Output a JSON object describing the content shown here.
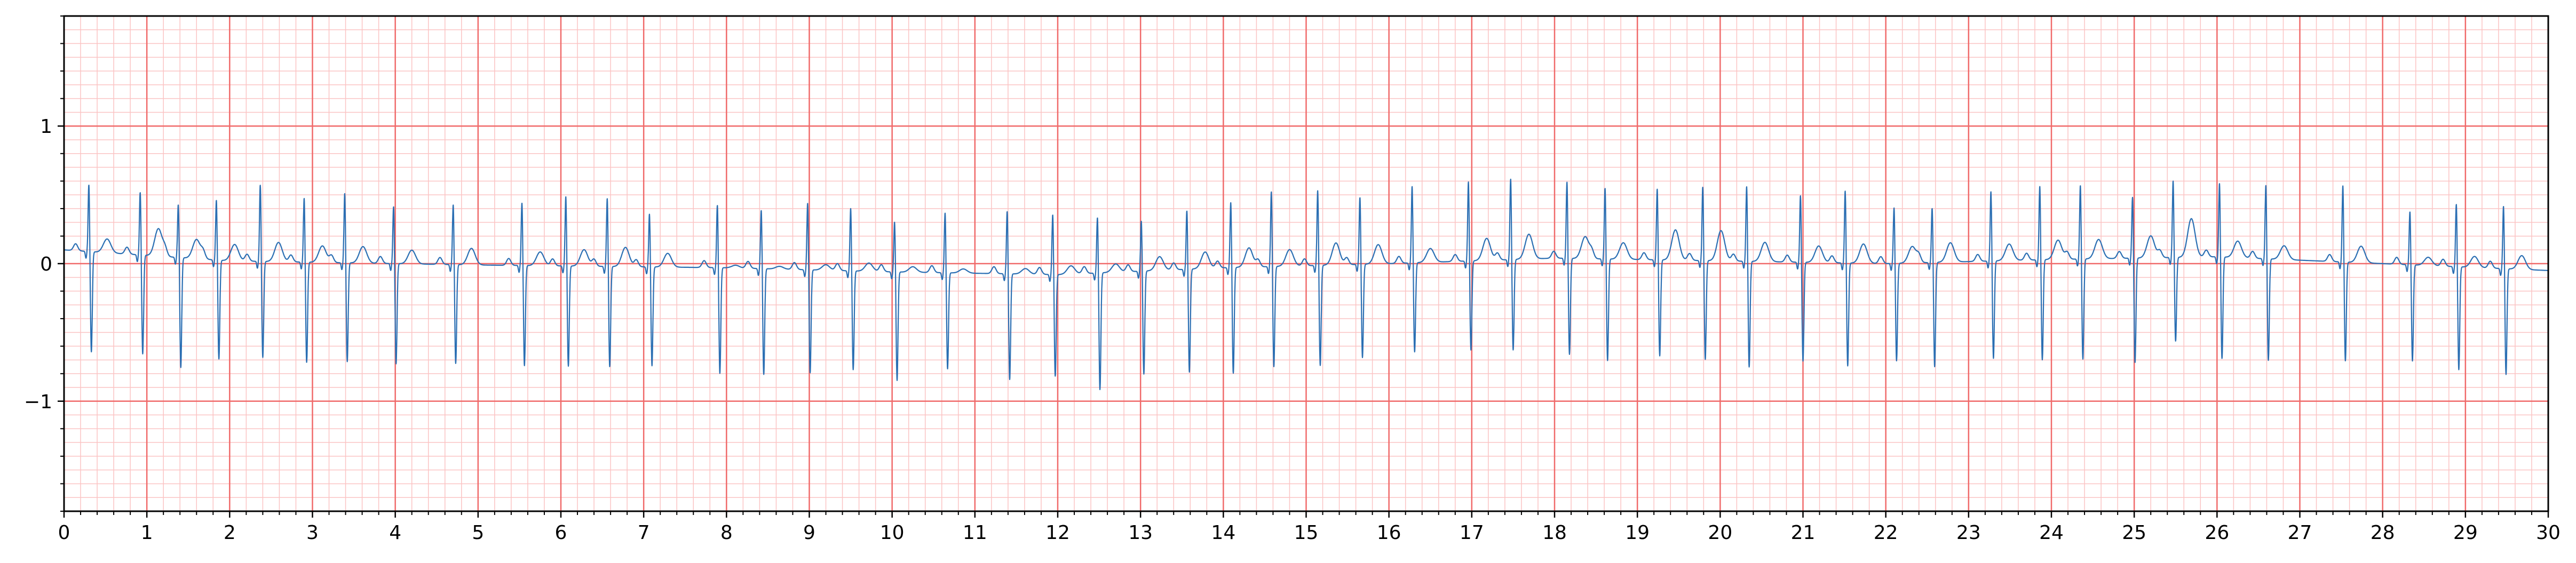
{
  "chart_data": {
    "type": "line",
    "title": "",
    "xlabel": "",
    "ylabel": "",
    "xlim": [
      0,
      30
    ],
    "ylim": [
      -1.8,
      1.8
    ],
    "x_ticks": [
      "0",
      "1",
      "2",
      "3",
      "4",
      "5",
      "6",
      "7",
      "8",
      "9",
      "10",
      "11",
      "12",
      "13",
      "14",
      "15",
      "16",
      "17",
      "18",
      "19",
      "20",
      "21",
      "22",
      "23",
      "24",
      "25",
      "26",
      "27",
      "28",
      "29",
      "30"
    ],
    "y_ticks": [
      "1",
      "0",
      "−1"
    ],
    "y_tick_values": [
      1,
      0,
      -1
    ],
    "grid": true,
    "grid_style": "ECG paper: major lines every 1 s and 1 mV, minor lines every 0.2 s and 0.1 mV",
    "colors": {
      "major_grid": "#f06a6a",
      "minor_grid": "#fbc4c4",
      "trace": "#2b6fb3"
    },
    "series": [
      {
        "name": "",
        "sampling": "one beat per R-peak time; waveform: small P wave, narrow QRS (R peak then deep S), broad T wave, slightly wandering baseline",
        "r_peak_times": [
          0.3,
          0.92,
          1.38,
          1.84,
          2.37,
          2.9,
          3.39,
          3.98,
          4.7,
          5.53,
          6.06,
          6.56,
          7.07,
          7.89,
          8.42,
          8.98,
          9.5,
          10.03,
          10.64,
          11.39,
          11.94,
          12.48,
          13.01,
          13.56,
          14.09,
          14.58,
          15.14,
          15.65,
          16.28,
          16.96,
          17.47,
          18.15,
          18.61,
          19.24,
          19.79,
          20.32,
          20.97,
          21.51,
          22.1,
          22.56,
          23.27,
          23.86,
          24.35,
          24.98,
          25.47,
          26.03,
          26.59,
          27.52,
          28.33,
          28.89,
          29.46
        ],
        "r_peak_amplitudes": [
          0.5,
          0.47,
          0.4,
          0.45,
          0.57,
          0.48,
          0.52,
          0.43,
          0.45,
          0.47,
          0.52,
          0.51,
          0.4,
          0.47,
          0.44,
          0.5,
          0.47,
          0.38,
          0.45,
          0.47,
          0.45,
          0.42,
          0.38,
          0.44,
          0.49,
          0.56,
          0.56,
          0.5,
          0.57,
          0.59,
          0.6,
          0.57,
          0.53,
          0.53,
          0.55,
          0.56,
          0.5,
          0.54,
          0.42,
          0.41,
          0.52,
          0.55,
          0.55,
          0.46,
          0.57,
          0.55,
          0.55,
          0.57,
          0.4,
          0.47,
          0.47
        ],
        "s_trough_amplitudes": [
          -0.73,
          -0.72,
          -0.8,
          -0.72,
          -0.7,
          -0.73,
          -0.72,
          -0.73,
          -0.72,
          -0.73,
          -0.73,
          -0.73,
          -0.72,
          -0.77,
          -0.77,
          -0.75,
          -0.72,
          -0.79,
          -0.7,
          -0.77,
          -0.74,
          -0.85,
          -0.75,
          -0.75,
          -0.77,
          -0.73,
          -0.73,
          -0.68,
          -0.65,
          -0.65,
          -0.66,
          -0.7,
          -0.74,
          -0.7,
          -0.72,
          -0.77,
          -0.72,
          -0.75,
          -0.71,
          -0.76,
          -0.71,
          -0.73,
          -0.73,
          -0.76,
          -0.61,
          -0.74,
          -0.74,
          -0.72,
          -0.7,
          -0.75,
          -0.77
        ],
        "t_wave_amplitudes": [
          0.1,
          0.2,
          0.14,
          0.12,
          0.14,
          0.12,
          0.12,
          0.1,
          0.12,
          0.1,
          0.12,
          0.14,
          0.1,
          0.02,
          0.02,
          0.04,
          0.06,
          0.04,
          0.03,
          0.04,
          0.06,
          0.06,
          0.1,
          0.12,
          0.14,
          0.12,
          0.16,
          0.14,
          0.1,
          0.16,
          0.18,
          0.16,
          0.12,
          0.22,
          0.22,
          0.14,
          0.12,
          0.14,
          0.12,
          0.14,
          0.12,
          0.14,
          0.14,
          0.16,
          0.28,
          0.12,
          0.1,
          0.12,
          0.06,
          0.08,
          0.1
        ],
        "baseline": [
          [
            0,
            0.1
          ],
          [
            2,
            0.02
          ],
          [
            5,
            -0.01
          ],
          [
            8,
            -0.03
          ],
          [
            10,
            -0.06
          ],
          [
            12,
            -0.08
          ],
          [
            14,
            -0.03
          ],
          [
            16,
            0.0
          ],
          [
            18,
            0.04
          ],
          [
            20,
            0.02
          ],
          [
            22,
            0.0
          ],
          [
            24,
            0.03
          ],
          [
            26,
            0.05
          ],
          [
            28,
            0.0
          ],
          [
            30,
            -0.05
          ]
        ]
      }
    ]
  }
}
